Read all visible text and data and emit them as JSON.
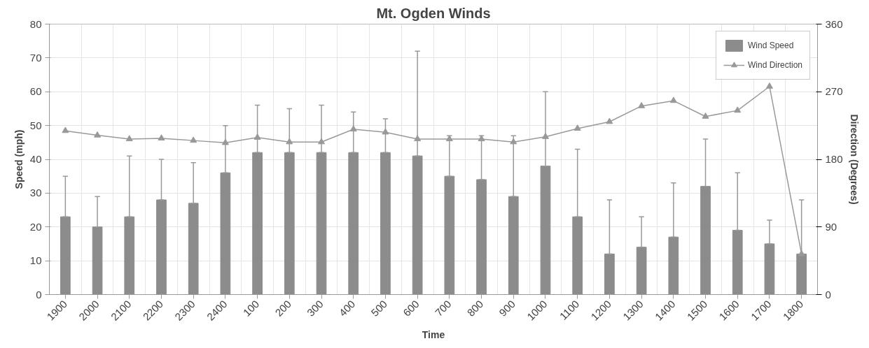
{
  "chart_data": {
    "type": "bar",
    "title": "Mt. Ogden Winds",
    "xlabel": "Time",
    "ylabel": "Speed (mph)",
    "y2label": "Direction (Degrees)",
    "categories": [
      "1900",
      "2000",
      "2100",
      "2200",
      "2300",
      "2400",
      "100",
      "200",
      "300",
      "400",
      "500",
      "600",
      "700",
      "800",
      "900",
      "1000",
      "1100",
      "1200",
      "1300",
      "1400",
      "1500",
      "1600",
      "1700",
      "1800"
    ],
    "series": [
      {
        "name": "Wind Speed",
        "color": "#8c8c8c",
        "values": [
          23,
          20,
          23,
          28,
          27,
          36,
          42,
          42,
          42,
          42,
          42,
          41,
          35,
          34,
          29,
          38,
          23,
          12,
          14,
          17,
          32,
          19,
          15,
          12
        ],
        "errors": [
          [
            23,
            35
          ],
          [
            20,
            29
          ],
          [
            23,
            41
          ],
          [
            28,
            40
          ],
          [
            27,
            39
          ],
          [
            36,
            50
          ],
          [
            42,
            56
          ],
          [
            42,
            55
          ],
          [
            42,
            56
          ],
          [
            42,
            54
          ],
          [
            42,
            52
          ],
          [
            41,
            72
          ],
          [
            35,
            47
          ],
          [
            34,
            47
          ],
          [
            29,
            47
          ],
          [
            38,
            60
          ],
          [
            23,
            43
          ],
          [
            12,
            28
          ],
          [
            14,
            23
          ],
          [
            17,
            33
          ],
          [
            32,
            46
          ],
          [
            19,
            36
          ],
          [
            15,
            22
          ],
          [
            12,
            28
          ]
        ]
      },
      {
        "name": "Wind Direction",
        "type": "line",
        "axis": "y2",
        "color": "#999999",
        "marker": "triangle",
        "line_style": "solid",
        "values": [
          218,
          212,
          207,
          208,
          205,
          202,
          209,
          203,
          203,
          220,
          216,
          207,
          207,
          207,
          203,
          210,
          221,
          230,
          251,
          258,
          237,
          245,
          277,
          54
        ]
      }
    ],
    "ylim": [
      0,
      80
    ],
    "yticks": [
      0,
      10,
      20,
      30,
      40,
      50,
      60,
      70,
      80
    ],
    "y2lim": [
      0,
      360
    ],
    "y2ticks": [
      0,
      90,
      180,
      270,
      360
    ],
    "grid": true,
    "legend": "top right"
  }
}
